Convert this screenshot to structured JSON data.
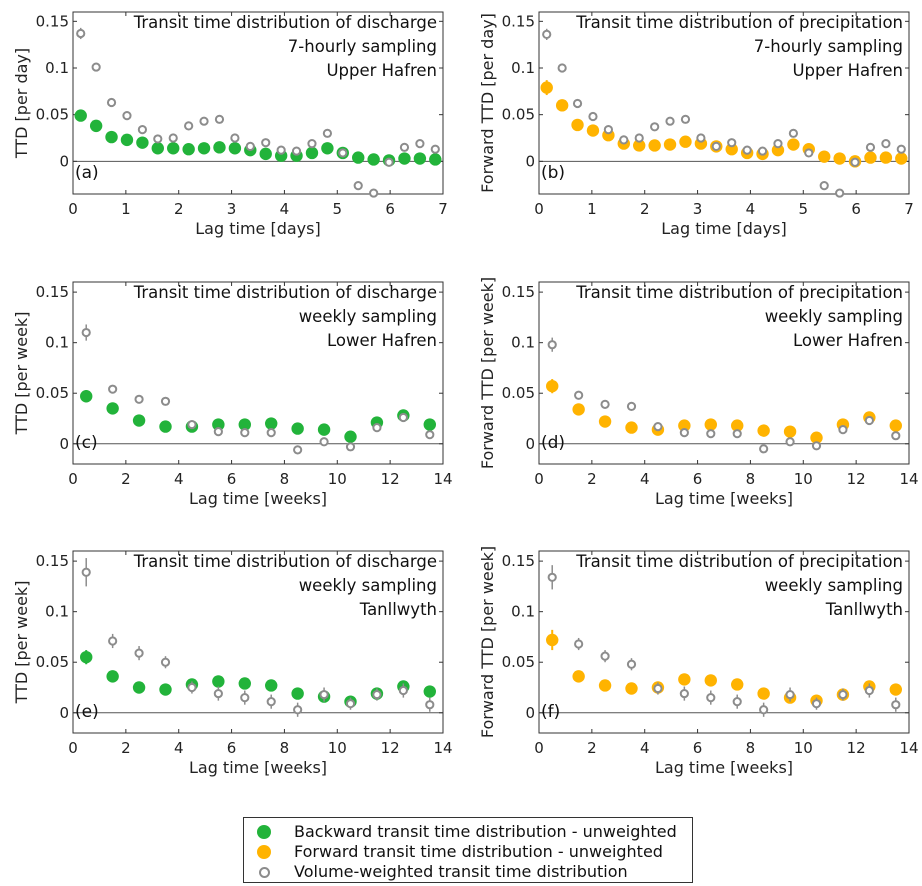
{
  "colors": {
    "backward": "#22b33a",
    "forward": "#ffb300",
    "weighted": "#8c8c8c",
    "axis": "#333333",
    "zero_line": "#555555"
  },
  "legend": {
    "items": [
      {
        "label": "Backward transit time distribution - unweighted",
        "style": "filled-green-dot"
      },
      {
        "label": "Forward transit time distribution - unweighted",
        "style": "filled-orange-dot"
      },
      {
        "label": "Volume-weighted transit time distribution",
        "style": "open-grey-circle"
      }
    ]
  },
  "chart_data": [
    {
      "panel": "(a)",
      "type": "scatter",
      "title_lines": [
        "Transit time distribution of discharge",
        "7-hourly sampling",
        "Upper Hafren"
      ],
      "xlabel": "Lag time [days]",
      "ylabel": "TTD [per day]",
      "xlim": [
        0,
        7
      ],
      "ylim": [
        -0.035,
        0.16
      ],
      "xticks": [
        0,
        1,
        2,
        3,
        4,
        5,
        6,
        7
      ],
      "yticks": [
        0,
        0.05,
        0.1,
        0.15
      ],
      "ytick_labels": [
        "0",
        "0.05",
        "0.1",
        "0.15"
      ],
      "x_is_int": true,
      "series": [
        {
          "kind": "unweighted",
          "color_key": "backward",
          "x": [
            0.146,
            0.438,
            0.729,
            1.021,
            1.313,
            1.604,
            1.896,
            2.188,
            2.479,
            2.771,
            3.063,
            3.354,
            3.646,
            3.938,
            4.229,
            4.521,
            4.813,
            5.104,
            5.396,
            5.688,
            5.979,
            6.271,
            6.563,
            6.854
          ],
          "y": [
            0.049,
            0.038,
            0.026,
            0.023,
            0.02,
            0.014,
            0.014,
            0.013,
            0.014,
            0.015,
            0.014,
            0.012,
            0.008,
            0.006,
            0.006,
            0.009,
            0.014,
            0.009,
            0.004,
            0.002,
            0.001,
            0.003,
            0.003,
            0.002
          ],
          "err": [
            0.003,
            0.003,
            0.003,
            0.003,
            0.003,
            0.003,
            0.003,
            0.003,
            0.003,
            0.003,
            0.003,
            0.003,
            0.003,
            0.003,
            0.003,
            0.003,
            0.003,
            0.003,
            0.003,
            0.003,
            0.003,
            0.003,
            0.003,
            0.003
          ]
        },
        {
          "kind": "weighted",
          "color_key": "weighted",
          "x": [
            0.146,
            0.438,
            0.729,
            1.021,
            1.313,
            1.604,
            1.896,
            2.188,
            2.479,
            2.771,
            3.063,
            3.354,
            3.646,
            3.938,
            4.229,
            4.521,
            4.813,
            5.104,
            5.396,
            5.688,
            5.979,
            6.271,
            6.563,
            6.854
          ],
          "y": [
            0.137,
            0.101,
            0.063,
            0.049,
            0.034,
            0.024,
            0.025,
            0.038,
            0.043,
            0.045,
            0.025,
            0.016,
            0.02,
            0.012,
            0.011,
            0.019,
            0.03,
            0.009,
            -0.026,
            -0.034,
            -0.001,
            0.015,
            0.019,
            0.013
          ],
          "err": [
            0.006,
            0.004,
            0.004,
            0.004,
            0.004,
            0.004,
            0.004,
            0.004,
            0.004,
            0.004,
            0.004,
            0.004,
            0.004,
            0.004,
            0.004,
            0.004,
            0.004,
            0.004,
            0.004,
            0.004,
            0.004,
            0.004,
            0.004,
            0.004
          ]
        }
      ]
    },
    {
      "panel": "(b)",
      "type": "scatter",
      "title_lines": [
        "Transit time distribution of precipitation",
        "7-hourly sampling",
        "Upper Hafren"
      ],
      "xlabel": "Lag time [days]",
      "ylabel": "Forward TTD [per day]",
      "xlim": [
        0,
        7
      ],
      "ylim": [
        -0.035,
        0.16
      ],
      "xticks": [
        0,
        1,
        2,
        3,
        4,
        5,
        6,
        7
      ],
      "yticks": [
        0,
        0.05,
        0.1,
        0.15
      ],
      "ytick_labels": [
        "0",
        "0.05",
        "0.1",
        "0.15"
      ],
      "x_is_int": true,
      "series": [
        {
          "kind": "unweighted",
          "color_key": "forward",
          "x": [
            0.146,
            0.438,
            0.729,
            1.021,
            1.313,
            1.604,
            1.896,
            2.188,
            2.479,
            2.771,
            3.063,
            3.354,
            3.646,
            3.938,
            4.229,
            4.521,
            4.813,
            5.104,
            5.396,
            5.688,
            5.979,
            6.271,
            6.563,
            6.854
          ],
          "y": [
            0.079,
            0.06,
            0.039,
            0.033,
            0.028,
            0.019,
            0.017,
            0.017,
            0.018,
            0.021,
            0.019,
            0.016,
            0.013,
            0.009,
            0.008,
            0.012,
            0.018,
            0.013,
            0.005,
            0.003,
            0.0,
            0.004,
            0.004,
            0.003
          ],
          "err": [
            0.008,
            0.004,
            0.003,
            0.003,
            0.003,
            0.003,
            0.003,
            0.003,
            0.003,
            0.003,
            0.003,
            0.003,
            0.003,
            0.003,
            0.003,
            0.003,
            0.003,
            0.003,
            0.003,
            0.003,
            0.003,
            0.003,
            0.003,
            0.003
          ]
        },
        {
          "kind": "weighted",
          "color_key": "weighted",
          "x": [
            0.146,
            0.438,
            0.729,
            1.021,
            1.313,
            1.604,
            1.896,
            2.188,
            2.479,
            2.771,
            3.063,
            3.354,
            3.646,
            3.938,
            4.229,
            4.521,
            4.813,
            5.104,
            5.396,
            5.688,
            5.979,
            6.271,
            6.563,
            6.854
          ],
          "y": [
            0.136,
            0.1,
            0.062,
            0.048,
            0.034,
            0.023,
            0.025,
            0.037,
            0.043,
            0.045,
            0.025,
            0.016,
            0.02,
            0.012,
            0.011,
            0.019,
            0.03,
            0.009,
            -0.026,
            -0.034,
            -0.001,
            0.015,
            0.019,
            0.013
          ],
          "err": [
            0.006,
            0.004,
            0.004,
            0.004,
            0.004,
            0.004,
            0.004,
            0.004,
            0.004,
            0.004,
            0.004,
            0.004,
            0.004,
            0.004,
            0.004,
            0.004,
            0.004,
            0.004,
            0.004,
            0.004,
            0.004,
            0.004,
            0.004,
            0.004
          ]
        }
      ]
    },
    {
      "panel": "(c)",
      "type": "scatter",
      "title_lines": [
        "Transit time distribution of discharge",
        "weekly sampling",
        "Lower Hafren"
      ],
      "xlabel": "Lag time [weeks]",
      "ylabel": "TTD [per week]",
      "xlim": [
        0,
        14
      ],
      "ylim": [
        -0.02,
        0.16
      ],
      "xticks": [
        0,
        2,
        4,
        6,
        8,
        10,
        12,
        14
      ],
      "yticks": [
        0,
        0.05,
        0.1,
        0.15
      ],
      "ytick_labels": [
        "0",
        "0.05",
        "0.1",
        "0.15"
      ],
      "x_is_int": true,
      "series": [
        {
          "kind": "unweighted",
          "color_key": "backward",
          "x": [
            0.5,
            1.5,
            2.5,
            3.5,
            4.5,
            5.5,
            6.5,
            7.5,
            8.5,
            9.5,
            10.5,
            11.5,
            12.5,
            13.5
          ],
          "y": [
            0.047,
            0.035,
            0.023,
            0.017,
            0.017,
            0.019,
            0.019,
            0.02,
            0.015,
            0.014,
            0.007,
            0.021,
            0.028,
            0.019
          ],
          "err": [
            0.006,
            0.003,
            0.003,
            0.003,
            0.003,
            0.003,
            0.003,
            0.003,
            0.003,
            0.003,
            0.003,
            0.003,
            0.003,
            0.003
          ]
        },
        {
          "kind": "weighted",
          "color_key": "weighted",
          "x": [
            0.5,
            1.5,
            2.5,
            3.5,
            4.5,
            5.5,
            6.5,
            7.5,
            8.5,
            9.5,
            10.5,
            11.5,
            12.5,
            13.5
          ],
          "y": [
            0.11,
            0.054,
            0.044,
            0.042,
            0.019,
            0.012,
            0.011,
            0.011,
            -0.006,
            0.002,
            -0.003,
            0.016,
            0.026,
            0.009
          ],
          "err": [
            0.008,
            0.004,
            0.004,
            0.004,
            0.004,
            0.004,
            0.004,
            0.004,
            0.004,
            0.004,
            0.004,
            0.004,
            0.004,
            0.004
          ]
        }
      ]
    },
    {
      "panel": "(d)",
      "type": "scatter",
      "title_lines": [
        "Transit time distribution of precipitation",
        "weekly sampling",
        "Lower Hafren"
      ],
      "xlabel": "Lag time [weeks]",
      "ylabel": "Forward TTD [per week]",
      "xlim": [
        0,
        14
      ],
      "ylim": [
        -0.02,
        0.16
      ],
      "xticks": [
        0,
        2,
        4,
        6,
        8,
        10,
        12,
        14
      ],
      "yticks": [
        0,
        0.05,
        0.1,
        0.15
      ],
      "ytick_labels": [
        "0",
        "0.05",
        "0.1",
        "0.15"
      ],
      "x_is_int": true,
      "series": [
        {
          "kind": "unweighted",
          "color_key": "forward",
          "x": [
            0.5,
            1.5,
            2.5,
            3.5,
            4.5,
            5.5,
            6.5,
            7.5,
            8.5,
            9.5,
            10.5,
            11.5,
            12.5,
            13.5
          ],
          "y": [
            0.057,
            0.034,
            0.022,
            0.016,
            0.014,
            0.018,
            0.019,
            0.018,
            0.013,
            0.012,
            0.006,
            0.019,
            0.026,
            0.018
          ],
          "err": [
            0.007,
            0.003,
            0.003,
            0.003,
            0.003,
            0.003,
            0.003,
            0.003,
            0.003,
            0.003,
            0.003,
            0.003,
            0.003,
            0.003
          ]
        },
        {
          "kind": "weighted",
          "color_key": "weighted",
          "x": [
            0.5,
            1.5,
            2.5,
            3.5,
            4.5,
            5.5,
            6.5,
            7.5,
            8.5,
            9.5,
            10.5,
            11.5,
            12.5,
            13.5
          ],
          "y": [
            0.098,
            0.048,
            0.039,
            0.037,
            0.017,
            0.011,
            0.01,
            0.01,
            -0.005,
            0.002,
            -0.002,
            0.014,
            0.023,
            0.008
          ],
          "err": [
            0.007,
            0.004,
            0.004,
            0.004,
            0.004,
            0.004,
            0.004,
            0.004,
            0.004,
            0.004,
            0.004,
            0.004,
            0.004,
            0.004
          ]
        }
      ]
    },
    {
      "panel": "(e)",
      "type": "scatter",
      "title_lines": [
        "Transit time distribution of discharge",
        "weekly sampling",
        "Tanllwyth"
      ],
      "xlabel": "Lag time [weeks]",
      "ylabel": "TTD  [per week]",
      "xlim": [
        0,
        14
      ],
      "ylim": [
        -0.02,
        0.16
      ],
      "xticks": [
        0,
        2,
        4,
        6,
        8,
        10,
        12,
        14
      ],
      "yticks": [
        0,
        0.05,
        0.1,
        0.15
      ],
      "ytick_labels": [
        "0",
        "0.05",
        "0.1",
        "0.15"
      ],
      "x_is_int": true,
      "series": [
        {
          "kind": "unweighted",
          "color_key": "backward",
          "x": [
            0.5,
            1.5,
            2.5,
            3.5,
            4.5,
            5.5,
            6.5,
            7.5,
            8.5,
            9.5,
            10.5,
            11.5,
            12.5,
            13.5
          ],
          "y": [
            0.055,
            0.036,
            0.025,
            0.023,
            0.028,
            0.031,
            0.029,
            0.027,
            0.019,
            0.016,
            0.011,
            0.019,
            0.026,
            0.021
          ],
          "err": [
            0.007,
            0.004,
            0.003,
            0.003,
            0.003,
            0.003,
            0.003,
            0.003,
            0.003,
            0.003,
            0.003,
            0.003,
            0.003,
            0.003
          ]
        },
        {
          "kind": "weighted",
          "color_key": "weighted",
          "x": [
            0.5,
            1.5,
            2.5,
            3.5,
            4.5,
            5.5,
            6.5,
            7.5,
            8.5,
            9.5,
            10.5,
            11.5,
            12.5,
            13.5
          ],
          "y": [
            0.139,
            0.071,
            0.059,
            0.05,
            0.025,
            0.019,
            0.015,
            0.011,
            0.003,
            0.018,
            0.009,
            0.018,
            0.022,
            0.008
          ],
          "err": [
            0.014,
            0.007,
            0.007,
            0.006,
            0.006,
            0.007,
            0.007,
            0.007,
            0.007,
            0.007,
            0.006,
            0.006,
            0.007,
            0.007
          ]
        }
      ]
    },
    {
      "panel": "(f)",
      "type": "scatter",
      "title_lines": [
        "Transit time distribution of precipitation",
        "weekly sampling",
        "Tanllwyth"
      ],
      "xlabel": "Lag time [weeks]",
      "ylabel": "Forward TTD [per week]",
      "xlim": [
        0,
        14
      ],
      "ylim": [
        -0.02,
        0.16
      ],
      "xticks": [
        0,
        2,
        4,
        6,
        8,
        10,
        12,
        14
      ],
      "yticks": [
        0,
        0.05,
        0.1,
        0.15
      ],
      "ytick_labels": [
        "0",
        "0.05",
        "0.1",
        "0.15"
      ],
      "x_is_int": true,
      "series": [
        {
          "kind": "unweighted",
          "color_key": "forward",
          "x": [
            0.5,
            1.5,
            2.5,
            3.5,
            4.5,
            5.5,
            6.5,
            7.5,
            8.5,
            9.5,
            10.5,
            11.5,
            12.5,
            13.5
          ],
          "y": [
            0.072,
            0.036,
            0.027,
            0.024,
            0.025,
            0.033,
            0.032,
            0.028,
            0.019,
            0.015,
            0.012,
            0.018,
            0.026,
            0.023
          ],
          "err": [
            0.01,
            0.004,
            0.003,
            0.003,
            0.003,
            0.004,
            0.004,
            0.003,
            0.003,
            0.003,
            0.003,
            0.003,
            0.003,
            0.003
          ]
        },
        {
          "kind": "weighted",
          "color_key": "weighted",
          "x": [
            0.5,
            1.5,
            2.5,
            3.5,
            4.5,
            5.5,
            6.5,
            7.5,
            8.5,
            9.5,
            10.5,
            11.5,
            12.5,
            13.5
          ],
          "y": [
            0.134,
            0.068,
            0.056,
            0.048,
            0.024,
            0.019,
            0.015,
            0.011,
            0.003,
            0.018,
            0.009,
            0.018,
            0.022,
            0.008
          ],
          "err": [
            0.012,
            0.006,
            0.006,
            0.006,
            0.006,
            0.007,
            0.007,
            0.007,
            0.007,
            0.007,
            0.006,
            0.006,
            0.007,
            0.007
          ]
        }
      ]
    }
  ]
}
